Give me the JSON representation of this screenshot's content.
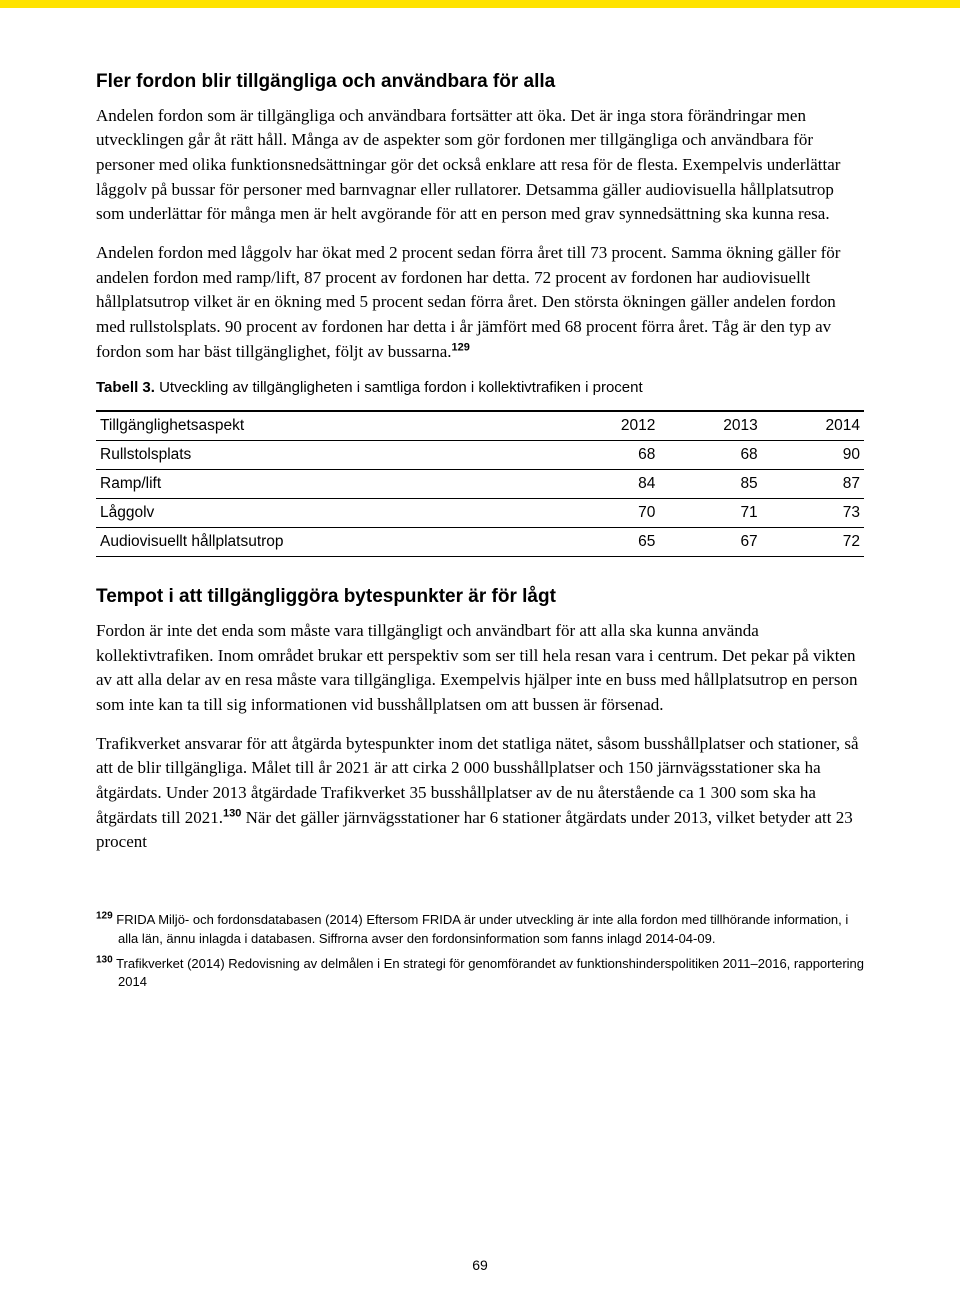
{
  "section1": {
    "heading": "Fler fordon blir tillgängliga och användbara för alla",
    "p1": "Andelen fordon som är tillgängliga och användbara fortsätter att öka. Det är inga stora förändringar men utvecklingen går åt rätt håll. Många av de aspekter som gör fordonen mer tillgängliga och användbara för personer med olika funktionsnedsättningar gör det också enklare att resa för de flesta. Exempelvis underlättar låggolv på bussar för personer med barnvagnar eller rullatorer. Detsamma gäller audiovisuella hållplatsutrop som underlättar för många men är helt avgörande för att en person med grav synnedsättning ska kunna resa.",
    "p2a": "Andelen fordon med låggolv har ökat med 2 procent sedan förra året till 73 procent. Samma ökning gäller för andelen fordon med ramp/lift, 87 procent av fordonen har detta. 72 procent av fordonen har audiovisuellt hållplatsutrop vilket är en ökning med 5 procent sedan förra året. Den största ökningen gäller andelen fordon med rullstolsplats. 90 procent av fordonen har detta i år jämfört med 68 procent förra året. Tåg är den typ av fordon som har bäst tillgänglighet, följt av bussarna.",
    "p2_ref": "129"
  },
  "table": {
    "caption_label": "Tabell 3.",
    "caption_text": " Utveckling av tillgängligheten i samtliga fordon i kollektivtrafiken i procent",
    "columns": [
      "Tillgänglighetsaspekt",
      "2012",
      "2013",
      "2014"
    ],
    "rows": [
      [
        "Rullstolsplats",
        "68",
        "68",
        "90"
      ],
      [
        "Ramp/lift",
        "84",
        "85",
        "87"
      ],
      [
        "Låggolv",
        "70",
        "71",
        "73"
      ],
      [
        "Audiovisuellt hållplatsutrop",
        "65",
        "67",
        "72"
      ]
    ]
  },
  "section2": {
    "heading": "Tempot i att tillgängliggöra bytespunkter är för lågt",
    "p1": "Fordon är inte det enda som måste vara tillgängligt och användbart för att alla ska kunna använda kollektivtrafiken. Inom området brukar ett perspektiv som ser till hela resan vara i centrum. Det pekar på vikten av att alla delar av en resa måste vara tillgängliga. Exempelvis hjälper inte en buss med hållplatsutrop en person som inte kan ta till sig informationen vid busshållplatsen om att bussen är försenad.",
    "p2a": "Trafikverket ansvarar för att åtgärda bytespunkter inom det statliga nätet, såsom busshållplatser och stationer, så att de blir tillgängliga. Målet till år 2021 är att cirka 2 000 busshållplatser och 150 järnvägsstationer ska ha åtgärdats. Under 2013 åtgärdade Trafikverket 35 busshållplatser av de nu återstående ca 1 300 som ska ha åtgärdats till 2021.",
    "p2_ref": "130",
    "p2b": " När det gäller järnvägsstationer har 6 stationer åtgärdats under 2013, vilket betyder att 23 procent"
  },
  "footnotes": {
    "n129_ref": "129",
    "n129_text": " FRIDA Miljö- och fordonsdatabasen (2014) Eftersom FRIDA är under utveckling är inte alla fordon med tillhörande information, i alla län, ännu inlagda i databasen. Siffrorna avser den fordonsinformation som fanns inlagd 2014-04-09.",
    "n130_ref": "130",
    "n130_text": " Trafikverket (2014) Redovisning av delmålen i En strategi för genomförandet av funktionshinderspolitiken 2011–2016, rapportering 2014"
  },
  "page_number": "69"
}
